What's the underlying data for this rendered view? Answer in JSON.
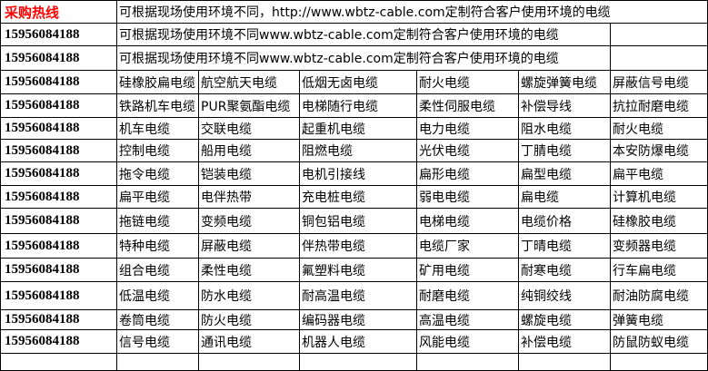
{
  "header": {
    "hotline_label": "采购热线",
    "description": "可根据现场使用环境不同，http://www.wbtz-cable.com定制符合客户使用环境的电缆",
    "color_hotline": "#ff0000"
  },
  "intro_rows": [
    {
      "phone": "15956084188",
      "text": "可根据现场使用环境不同www.wbtz-cable.com定制符合客户使用环境的电缆"
    },
    {
      "phone": "15956084188",
      "text": "可根据现场使用环境不同www.wbtz-cable.com定制符合客户使用环境的电缆"
    }
  ],
  "rows": [
    {
      "phone": "15956084188",
      "items": [
        "硅橡胶扁电缆",
        "航空航天电缆",
        "低烟无卤电缆",
        "耐火电缆",
        "螺旋弹簧电缆",
        "屏蔽信号电缆"
      ]
    },
    {
      "phone": "15956084188",
      "items": [
        "铁路机车电缆",
        "PUR聚氨酯电缆",
        "电梯随行电缆",
        "柔性伺服电缆",
        "补偿导线",
        "抗拉耐磨电缆"
      ]
    },
    {
      "phone": "15956084188",
      "items": [
        "机车电缆",
        "交联电缆",
        "起重机电缆",
        "电力电缆",
        "阻水电缆",
        "耐火电缆"
      ]
    },
    {
      "phone": "15956084188",
      "items": [
        "控制电缆",
        "船用电缆",
        "阻燃电缆",
        "光伏电缆",
        "丁腈电缆",
        "本安防爆电缆"
      ]
    },
    {
      "phone": "15956084188",
      "items": [
        "拖令电缆",
        "铠装电缆",
        "电机引接线",
        "扁形电缆",
        "扁型电缆",
        "扁平电缆"
      ]
    },
    {
      "phone": "15956084188",
      "items": [
        "扁平电缆",
        "电伴热带",
        "充电桩电缆",
        "弱电电缆",
        "扁电缆",
        "计算机电缆"
      ]
    },
    {
      "phone": "15956084188",
      "items": [
        "拖链电缆",
        "变频电缆",
        "铜包铝电缆",
        "电梯电缆",
        "电缆价格",
        "硅橡胶电缆"
      ]
    },
    {
      "phone": "15956084188",
      "items": [
        "特种电缆",
        "屏蔽电缆",
        "伴热带电缆",
        "电缆厂家",
        "丁晴电缆",
        "变频器电缆"
      ]
    },
    {
      "phone": "15956084188",
      "items": [
        "组合电缆",
        "柔性电缆",
        "氟塑料电缆",
        "矿用电缆",
        "耐寒电缆",
        "行车扁电缆"
      ]
    },
    {
      "phone": "15956084188",
      "items": [
        "低温电缆",
        "防水电缆",
        "耐高温电缆",
        "耐磨电缆",
        "纯铜绞线",
        "耐油防腐电缆"
      ]
    },
    {
      "phone": "15956084188",
      "items": [
        "卷筒电缆",
        "防火电缆",
        "编码器电缆",
        "高温电缆",
        "螺旋电缆",
        "弹簧电缆"
      ]
    },
    {
      "phone": "15956084188",
      "items": [
        "信号电缆",
        "通讯电缆",
        "机器人电缆",
        "风能电缆",
        "补偿电缆",
        "防鼠防蚁电缆"
      ]
    }
  ]
}
